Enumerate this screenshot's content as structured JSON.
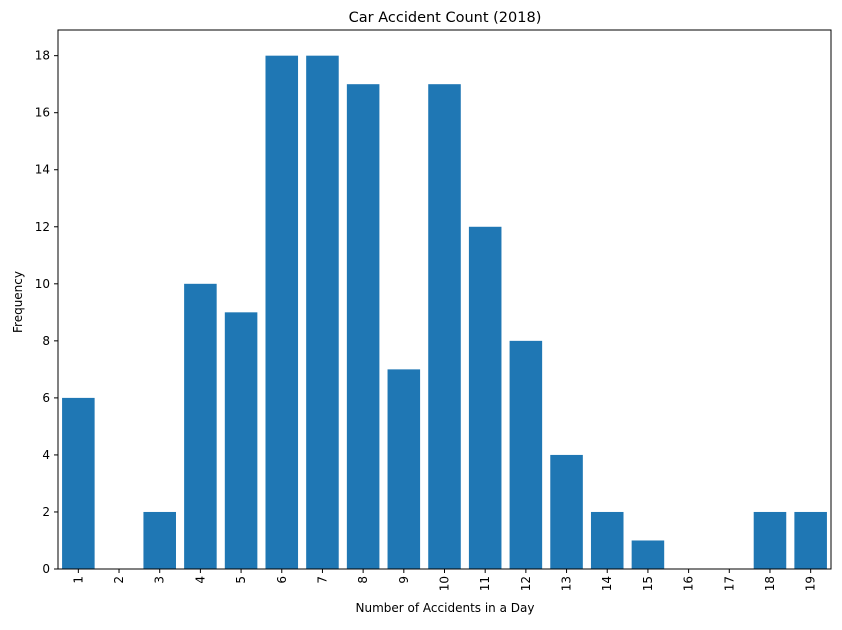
{
  "chart_data": {
    "type": "bar",
    "title": "Car Accident Count (2018)",
    "xlabel": "Number of Accidents in a Day",
    "ylabel": "Frequency",
    "categories": [
      "1",
      "2",
      "3",
      "4",
      "5",
      "6",
      "7",
      "8",
      "9",
      "10",
      "11",
      "12",
      "13",
      "14",
      "15",
      "16",
      "17",
      "18",
      "19"
    ],
    "values": [
      6,
      0,
      2,
      10,
      9,
      18,
      18,
      17,
      7,
      17,
      12,
      8,
      4,
      2,
      1,
      0,
      0,
      2,
      2
    ],
    "ylim": [
      0,
      18.9
    ],
    "yticks": [
      0,
      2,
      4,
      6,
      8,
      10,
      12,
      14,
      16,
      18
    ],
    "grid": false,
    "legend": "none",
    "xtick_rotation": "vertical",
    "colors": {
      "bar": "#1f77b4",
      "axis": "#000000",
      "background": "#ffffff"
    }
  }
}
